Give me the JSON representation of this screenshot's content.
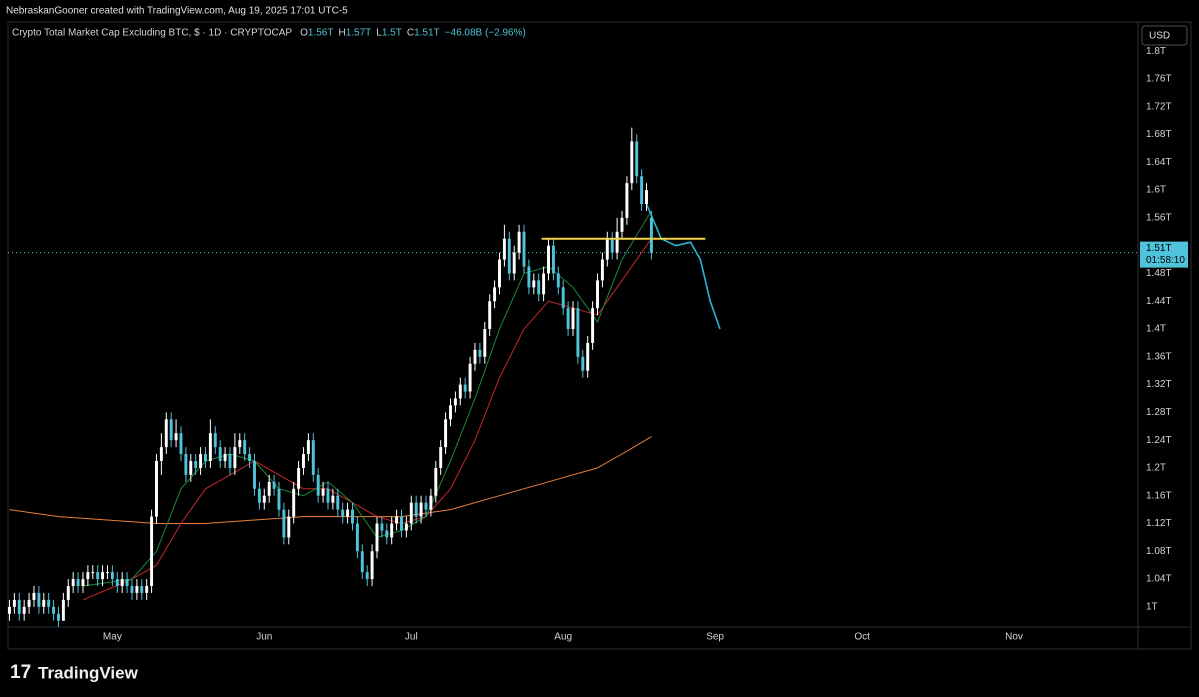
{
  "header": "NebraskanGooner created with TradingView.com, Aug 19, 2025 17:01 UTC-5",
  "brand": "TradingView",
  "currency": "USD",
  "chart_data": {
    "type": "candlestick",
    "title": "Crypto Total Market Cap Excluding BTC, $ · 1D · CRYPTOCAP",
    "ohlc_legend": [
      {
        "key": "O",
        "value": "1.56T"
      },
      {
        "key": "H",
        "value": "1.57T"
      },
      {
        "key": "L",
        "value": "1.5T"
      },
      {
        "key": "C",
        "value": "1.51T"
      }
    ],
    "change": "−46.08B (−2.96%)",
    "up_color": "#ffffff",
    "down_color": "#4fc3d9",
    "ohlc": [
      [
        0.99,
        1.01,
        0.98,
        1.0
      ],
      [
        1.0,
        1.02,
        0.99,
        1.01
      ],
      [
        1.01,
        1.02,
        0.98,
        0.99
      ],
      [
        0.99,
        1.01,
        0.98,
        1.0
      ],
      [
        1.0,
        1.02,
        0.99,
        1.01
      ],
      [
        1.01,
        1.03,
        1.0,
        1.02
      ],
      [
        1.02,
        1.03,
        0.99,
        1.0
      ],
      [
        1.0,
        1.02,
        0.99,
        1.01
      ],
      [
        1.01,
        1.02,
        0.99,
        1.0
      ],
      [
        1.0,
        1.01,
        0.98,
        0.99
      ],
      [
        0.99,
        1.0,
        0.97,
        0.98
      ],
      [
        0.98,
        1.02,
        0.98,
        1.01
      ],
      [
        1.01,
        1.04,
        1.0,
        1.03
      ],
      [
        1.03,
        1.05,
        1.02,
        1.04
      ],
      [
        1.04,
        1.05,
        1.02,
        1.03
      ],
      [
        1.03,
        1.05,
        1.02,
        1.04
      ],
      [
        1.04,
        1.06,
        1.03,
        1.05
      ],
      [
        1.05,
        1.06,
        1.04,
        1.05
      ],
      [
        1.05,
        1.06,
        1.03,
        1.04
      ],
      [
        1.04,
        1.06,
        1.03,
        1.05
      ],
      [
        1.05,
        1.06,
        1.04,
        1.05
      ],
      [
        1.05,
        1.06,
        1.03,
        1.04
      ],
      [
        1.04,
        1.05,
        1.02,
        1.03
      ],
      [
        1.03,
        1.05,
        1.02,
        1.04
      ],
      [
        1.04,
        1.05,
        1.02,
        1.03
      ],
      [
        1.03,
        1.04,
        1.01,
        1.02
      ],
      [
        1.02,
        1.04,
        1.01,
        1.03
      ],
      [
        1.03,
        1.04,
        1.01,
        1.02
      ],
      [
        1.02,
        1.04,
        1.01,
        1.03
      ],
      [
        1.03,
        1.14,
        1.02,
        1.13
      ],
      [
        1.13,
        1.22,
        1.12,
        1.21
      ],
      [
        1.21,
        1.25,
        1.19,
        1.23
      ],
      [
        1.23,
        1.28,
        1.22,
        1.27
      ],
      [
        1.27,
        1.28,
        1.23,
        1.24
      ],
      [
        1.24,
        1.27,
        1.23,
        1.25
      ],
      [
        1.25,
        1.26,
        1.21,
        1.22
      ],
      [
        1.22,
        1.23,
        1.18,
        1.19
      ],
      [
        1.19,
        1.22,
        1.18,
        1.21
      ],
      [
        1.21,
        1.22,
        1.19,
        1.2
      ],
      [
        1.2,
        1.23,
        1.19,
        1.22
      ],
      [
        1.22,
        1.23,
        1.2,
        1.21
      ],
      [
        1.21,
        1.27,
        1.2,
        1.25
      ],
      [
        1.25,
        1.26,
        1.22,
        1.23
      ],
      [
        1.23,
        1.24,
        1.2,
        1.21
      ],
      [
        1.21,
        1.23,
        1.2,
        1.22
      ],
      [
        1.22,
        1.23,
        1.19,
        1.2
      ],
      [
        1.2,
        1.25,
        1.19,
        1.23
      ],
      [
        1.23,
        1.25,
        1.22,
        1.24
      ],
      [
        1.24,
        1.25,
        1.21,
        1.22
      ],
      [
        1.22,
        1.23,
        1.2,
        1.21
      ],
      [
        1.21,
        1.22,
        1.16,
        1.17
      ],
      [
        1.17,
        1.18,
        1.14,
        1.15
      ],
      [
        1.15,
        1.17,
        1.14,
        1.16
      ],
      [
        1.16,
        1.19,
        1.15,
        1.18
      ],
      [
        1.18,
        1.19,
        1.16,
        1.17
      ],
      [
        1.17,
        1.18,
        1.13,
        1.14
      ],
      [
        1.14,
        1.15,
        1.09,
        1.1
      ],
      [
        1.1,
        1.14,
        1.09,
        1.13
      ],
      [
        1.13,
        1.18,
        1.12,
        1.17
      ],
      [
        1.17,
        1.21,
        1.16,
        1.2
      ],
      [
        1.2,
        1.23,
        1.19,
        1.22
      ],
      [
        1.22,
        1.25,
        1.21,
        1.24
      ],
      [
        1.24,
        1.25,
        1.18,
        1.19
      ],
      [
        1.19,
        1.2,
        1.15,
        1.16
      ],
      [
        1.16,
        1.18,
        1.15,
        1.17
      ],
      [
        1.17,
        1.18,
        1.14,
        1.15
      ],
      [
        1.15,
        1.17,
        1.14,
        1.16
      ],
      [
        1.16,
        1.17,
        1.13,
        1.14
      ],
      [
        1.14,
        1.15,
        1.12,
        1.13
      ],
      [
        1.13,
        1.15,
        1.12,
        1.14
      ],
      [
        1.14,
        1.15,
        1.11,
        1.12
      ],
      [
        1.12,
        1.13,
        1.07,
        1.08
      ],
      [
        1.08,
        1.09,
        1.04,
        1.05
      ],
      [
        1.05,
        1.06,
        1.03,
        1.04
      ],
      [
        1.04,
        1.09,
        1.03,
        1.08
      ],
      [
        1.08,
        1.13,
        1.07,
        1.12
      ],
      [
        1.12,
        1.13,
        1.1,
        1.11
      ],
      [
        1.11,
        1.12,
        1.09,
        1.1
      ],
      [
        1.1,
        1.13,
        1.09,
        1.12
      ],
      [
        1.12,
        1.14,
        1.11,
        1.13
      ],
      [
        1.13,
        1.14,
        1.1,
        1.11
      ],
      [
        1.11,
        1.13,
        1.1,
        1.12
      ],
      [
        1.12,
        1.16,
        1.11,
        1.15
      ],
      [
        1.15,
        1.16,
        1.12,
        1.13
      ],
      [
        1.13,
        1.16,
        1.12,
        1.15
      ],
      [
        1.15,
        1.16,
        1.13,
        1.14
      ],
      [
        1.14,
        1.17,
        1.13,
        1.16
      ],
      [
        1.16,
        1.21,
        1.15,
        1.2
      ],
      [
        1.2,
        1.24,
        1.19,
        1.23
      ],
      [
        1.23,
        1.28,
        1.22,
        1.27
      ],
      [
        1.27,
        1.3,
        1.26,
        1.29
      ],
      [
        1.29,
        1.31,
        1.28,
        1.3
      ],
      [
        1.3,
        1.33,
        1.29,
        1.32
      ],
      [
        1.32,
        1.33,
        1.3,
        1.31
      ],
      [
        1.31,
        1.36,
        1.3,
        1.35
      ],
      [
        1.35,
        1.38,
        1.34,
        1.37
      ],
      [
        1.37,
        1.38,
        1.35,
        1.36
      ],
      [
        1.36,
        1.41,
        1.35,
        1.4
      ],
      [
        1.4,
        1.45,
        1.39,
        1.44
      ],
      [
        1.44,
        1.47,
        1.43,
        1.46
      ],
      [
        1.46,
        1.51,
        1.45,
        1.5
      ],
      [
        1.5,
        1.55,
        1.49,
        1.53
      ],
      [
        1.53,
        1.54,
        1.47,
        1.48
      ],
      [
        1.48,
        1.52,
        1.47,
        1.51
      ],
      [
        1.51,
        1.55,
        1.5,
        1.54
      ],
      [
        1.54,
        1.55,
        1.48,
        1.49
      ],
      [
        1.49,
        1.5,
        1.45,
        1.46
      ],
      [
        1.46,
        1.48,
        1.45,
        1.47
      ],
      [
        1.47,
        1.48,
        1.44,
        1.45
      ],
      [
        1.45,
        1.49,
        1.44,
        1.48
      ],
      [
        1.48,
        1.53,
        1.47,
        1.52
      ],
      [
        1.52,
        1.53,
        1.47,
        1.48
      ],
      [
        1.48,
        1.49,
        1.45,
        1.46
      ],
      [
        1.46,
        1.47,
        1.42,
        1.43
      ],
      [
        1.43,
        1.44,
        1.39,
        1.4
      ],
      [
        1.4,
        1.44,
        1.39,
        1.43
      ],
      [
        1.43,
        1.44,
        1.35,
        1.36
      ],
      [
        1.36,
        1.37,
        1.33,
        1.34
      ],
      [
        1.34,
        1.39,
        1.33,
        1.38
      ],
      [
        1.38,
        1.44,
        1.37,
        1.43
      ],
      [
        1.43,
        1.48,
        1.42,
        1.47
      ],
      [
        1.47,
        1.51,
        1.46,
        1.5
      ],
      [
        1.5,
        1.54,
        1.49,
        1.53
      ],
      [
        1.53,
        1.54,
        1.5,
        1.51
      ],
      [
        1.51,
        1.56,
        1.5,
        1.54
      ],
      [
        1.54,
        1.57,
        1.53,
        1.56
      ],
      [
        1.56,
        1.62,
        1.55,
        1.61
      ],
      [
        1.61,
        1.69,
        1.6,
        1.67
      ],
      [
        1.67,
        1.68,
        1.61,
        1.62
      ],
      [
        1.62,
        1.63,
        1.57,
        1.58
      ],
      [
        1.58,
        1.61,
        1.57,
        1.6
      ],
      [
        1.56,
        1.57,
        1.5,
        1.51
      ]
    ],
    "lines": [
      {
        "color": "#e8803a",
        "x": [
          0,
          10,
          20,
          30,
          40,
          50,
          60,
          70,
          80,
          90,
          100,
          110,
          120,
          125,
          131
        ],
        "values": [
          1.14,
          1.13,
          1.125,
          1.12,
          1.12,
          1.125,
          1.13,
          1.13,
          1.13,
          1.14,
          1.16,
          1.18,
          1.2,
          1.22,
          1.245
        ]
      },
      {
        "color": "#c62828",
        "x": [
          15,
          25,
          30,
          35,
          40,
          45,
          50,
          55,
          60,
          65,
          70,
          75,
          80,
          85,
          90,
          95,
          100,
          105,
          110,
          115,
          120,
          125,
          131
        ],
        "values": [
          1.01,
          1.04,
          1.06,
          1.12,
          1.17,
          1.19,
          1.21,
          1.19,
          1.17,
          1.17,
          1.15,
          1.13,
          1.12,
          1.13,
          1.17,
          1.24,
          1.33,
          1.4,
          1.44,
          1.43,
          1.42,
          1.47,
          1.53
        ]
      },
      {
        "color": "#1b8a3a",
        "x": [
          15,
          25,
          30,
          35,
          40,
          45,
          50,
          55,
          60,
          65,
          70,
          75,
          80,
          85,
          90,
          95,
          100,
          105,
          110,
          115,
          120,
          125,
          131
        ],
        "values": [
          1.03,
          1.04,
          1.08,
          1.17,
          1.21,
          1.22,
          1.21,
          1.17,
          1.16,
          1.18,
          1.15,
          1.1,
          1.11,
          1.13,
          1.21,
          1.3,
          1.4,
          1.48,
          1.49,
          1.46,
          1.41,
          1.5,
          1.57
        ]
      },
      {
        "color": "#29b6d6",
        "x": [
          130,
          133,
          136,
          139,
          141,
          143,
          145
        ],
        "values": [
          1.58,
          1.53,
          1.52,
          1.525,
          1.5,
          1.44,
          1.4
        ]
      }
    ],
    "hline": {
      "color": "#f2d14b",
      "value": 1.53,
      "x": [
        108.6,
        142
      ]
    },
    "last_price": {
      "value": 1.51,
      "label": "1.51T",
      "countdown": "01:58:10"
    },
    "xlim": [
      -0.3,
      230.3
    ],
    "xticks": [
      {
        "value": 21,
        "label": "May"
      },
      {
        "value": 52,
        "label": "Jun"
      },
      {
        "value": 82,
        "label": "Jul"
      },
      {
        "value": 113,
        "label": "Aug"
      },
      {
        "value": 144,
        "label": "Sep"
      },
      {
        "value": 174,
        "label": "Oct"
      },
      {
        "value": 205,
        "label": "Nov"
      }
    ],
    "ylim": [
      0.971,
      1.842
    ],
    "yticks": [
      {
        "value": 1,
        "label": "1T"
      },
      {
        "value": 1.04,
        "label": "1.04T"
      },
      {
        "value": 1.08,
        "label": "1.08T"
      },
      {
        "value": 1.12,
        "label": "1.12T"
      },
      {
        "value": 1.16,
        "label": "1.16T"
      },
      {
        "value": 1.2,
        "label": "1.2T"
      },
      {
        "value": 1.24,
        "label": "1.24T"
      },
      {
        "value": 1.28,
        "label": "1.28T"
      },
      {
        "value": 1.32,
        "label": "1.32T"
      },
      {
        "value": 1.36,
        "label": "1.36T"
      },
      {
        "value": 1.4,
        "label": "1.4T"
      },
      {
        "value": 1.44,
        "label": "1.44T"
      },
      {
        "value": 1.48,
        "label": "1.48T"
      },
      {
        "value": 1.56,
        "label": "1.56T"
      },
      {
        "value": 1.6,
        "label": "1.6T"
      },
      {
        "value": 1.64,
        "label": "1.64T"
      },
      {
        "value": 1.68,
        "label": "1.68T"
      },
      {
        "value": 1.72,
        "label": "1.72T"
      },
      {
        "value": 1.76,
        "label": "1.76T"
      },
      {
        "value": 1.8,
        "label": "1.8T"
      }
    ],
    "grid": false
  }
}
